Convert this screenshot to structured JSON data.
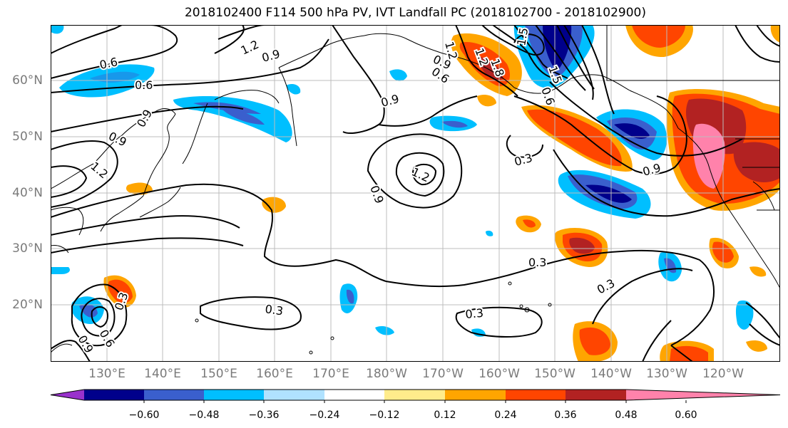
{
  "title": "2018102400 F114 500 hPa PV, IVT Landfall PC (2018102700 - 2018102900)",
  "axes": {
    "lat_labels": [
      "60°N",
      "50°N",
      "40°N",
      "30°N",
      "20°N"
    ],
    "lon_labels": [
      "130°E",
      "140°E",
      "150°E",
      "160°E",
      "170°E",
      "180°W",
      "170°W",
      "160°W",
      "150°W",
      "140°W",
      "130°W",
      "120°W"
    ]
  },
  "colorbar": {
    "tick_labels": [
      "−0.60",
      "−0.48",
      "−0.36",
      "−0.24",
      "−0.12",
      "0.12",
      "0.24",
      "0.36",
      "0.48",
      "0.60"
    ],
    "colors": [
      "#9932cc",
      "#00008b",
      "#3a5fcd",
      "#00bfff",
      "#b0e2ff",
      "#ffffff",
      "#ffec8b",
      "#ffa500",
      "#ff4500",
      "#b22222",
      "#ff82ab"
    ]
  },
  "contour_labels": [
    "1.2",
    "0.9",
    "0.6",
    "0.6",
    "0.9",
    "0.9",
    "1.2",
    "0.9",
    "1.2",
    "0.9",
    "0.9",
    "1.2",
    "1.2",
    "1.5",
    "0.6",
    "1.8",
    "0.6",
    "1.5",
    "0.3",
    "0.9",
    "0.3",
    "0.3",
    "0.3",
    "0.3",
    "0.3",
    "0.9",
    "0.6"
  ]
}
